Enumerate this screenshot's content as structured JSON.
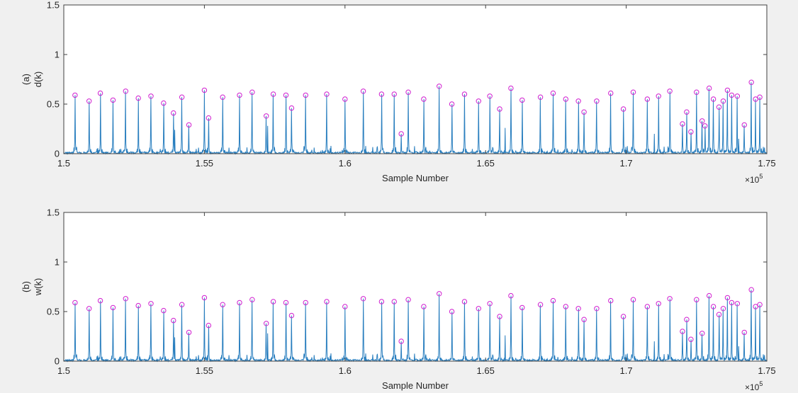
{
  "figure": {
    "background": "#f0f0f0",
    "axes_background": "#ffffff",
    "axis_color": "#404040",
    "signal_color": "#2a7fbf",
    "marker_color": "#d020d0"
  },
  "chart_data": [
    {
      "type": "line",
      "panel_label": "(a)",
      "ylabel": "d(k)",
      "xlabel": "Sample Number",
      "x_exponent_label": "×10",
      "x_exponent_power": "5",
      "xlim": [
        1.5,
        1.75
      ],
      "ylim": [
        0,
        1.5
      ],
      "x_ticks": [
        1.5,
        1.55,
        1.6,
        1.65,
        1.7,
        1.75
      ],
      "x_tick_labels": [
        "1.5",
        "1.55",
        "1.6",
        "1.65",
        "1.7",
        "1.75"
      ],
      "y_ticks": [
        0,
        0.5,
        1,
        1.5
      ],
      "y_tick_labels": [
        "0",
        "0.5",
        "1",
        "1.5"
      ],
      "grid": false,
      "series": [
        {
          "role": "signal",
          "style": "line"
        },
        {
          "role": "detected-peaks",
          "style": "circle-markers"
        }
      ],
      "peaks_x": [
        1.504,
        1.509,
        1.513,
        1.5175,
        1.522,
        1.5265,
        1.531,
        1.5355,
        1.539,
        1.542,
        1.5445,
        1.55,
        1.5515,
        1.5565,
        1.5625,
        1.567,
        1.572,
        1.5745,
        1.579,
        1.581,
        1.586,
        1.5935,
        1.6,
        1.6065,
        1.613,
        1.6175,
        1.62,
        1.6225,
        1.628,
        1.6335,
        1.638,
        1.6425,
        1.6475,
        1.6515,
        1.655,
        1.659,
        1.663,
        1.6695,
        1.674,
        1.6785,
        1.683,
        1.685,
        1.6895,
        1.6945,
        1.699,
        1.7025,
        1.7075,
        1.7115,
        1.7155,
        1.72,
        1.7215,
        1.723,
        1.725,
        1.727,
        1.728,
        1.7295,
        1.731,
        1.733,
        1.7345,
        1.736,
        1.7375,
        1.7395,
        1.742,
        1.7445,
        1.746,
        1.7475
      ],
      "peaks_y": [
        0.59,
        0.53,
        0.61,
        0.54,
        0.63,
        0.56,
        0.58,
        0.51,
        0.41,
        0.57,
        0.29,
        0.64,
        0.36,
        0.57,
        0.59,
        0.62,
        0.38,
        0.6,
        0.59,
        0.46,
        0.59,
        0.6,
        0.55,
        0.63,
        0.6,
        0.6,
        0.2,
        0.62,
        0.55,
        0.68,
        0.5,
        0.6,
        0.53,
        0.58,
        0.45,
        0.66,
        0.54,
        0.57,
        0.61,
        0.55,
        0.53,
        0.42,
        0.53,
        0.61,
        0.45,
        0.62,
        0.55,
        0.58,
        0.63,
        0.3,
        0.42,
        0.22,
        0.62,
        0.33,
        0.28,
        0.66,
        0.55,
        0.47,
        0.53,
        0.64,
        0.59,
        0.58,
        0.29,
        0.72,
        0.55,
        0.57
      ]
    },
    {
      "type": "line",
      "panel_label": "(b)",
      "ylabel": "w(k)",
      "xlabel": "Sample Number",
      "x_exponent_label": "×10",
      "x_exponent_power": "5",
      "xlim": [
        1.5,
        1.75
      ],
      "ylim": [
        0,
        1.5
      ],
      "x_ticks": [
        1.5,
        1.55,
        1.6,
        1.65,
        1.7,
        1.75
      ],
      "x_tick_labels": [
        "1.5",
        "1.55",
        "1.6",
        "1.65",
        "1.7",
        "1.75"
      ],
      "y_ticks": [
        0,
        0.5,
        1,
        1.5
      ],
      "y_tick_labels": [
        "0",
        "0.5",
        "1",
        "1.5"
      ],
      "grid": false,
      "series": [
        {
          "role": "signal",
          "style": "line"
        },
        {
          "role": "detected-peaks",
          "style": "circle-markers"
        }
      ],
      "peaks_x": [
        1.504,
        1.509,
        1.513,
        1.5175,
        1.522,
        1.5265,
        1.531,
        1.5355,
        1.539,
        1.542,
        1.5445,
        1.55,
        1.5515,
        1.5565,
        1.5625,
        1.567,
        1.572,
        1.5745,
        1.579,
        1.581,
        1.586,
        1.5935,
        1.6,
        1.6065,
        1.613,
        1.6175,
        1.62,
        1.6225,
        1.628,
        1.6335,
        1.638,
        1.6425,
        1.6475,
        1.6515,
        1.655,
        1.659,
        1.663,
        1.6695,
        1.674,
        1.6785,
        1.683,
        1.685,
        1.6895,
        1.6945,
        1.699,
        1.7025,
        1.7075,
        1.7115,
        1.7155,
        1.72,
        1.7215,
        1.723,
        1.725,
        1.727,
        1.7295,
        1.731,
        1.733,
        1.7345,
        1.736,
        1.7375,
        1.7395,
        1.742,
        1.7445,
        1.746,
        1.7475
      ],
      "peaks_y": [
        0.59,
        0.53,
        0.61,
        0.54,
        0.63,
        0.56,
        0.58,
        0.51,
        0.41,
        0.57,
        0.29,
        0.64,
        0.36,
        0.57,
        0.59,
        0.62,
        0.38,
        0.6,
        0.59,
        0.46,
        0.59,
        0.6,
        0.55,
        0.63,
        0.6,
        0.6,
        0.2,
        0.62,
        0.55,
        0.68,
        0.5,
        0.6,
        0.53,
        0.58,
        0.45,
        0.66,
        0.54,
        0.57,
        0.61,
        0.55,
        0.53,
        0.42,
        0.53,
        0.61,
        0.45,
        0.62,
        0.55,
        0.58,
        0.63,
        0.3,
        0.42,
        0.22,
        0.62,
        0.28,
        0.66,
        0.55,
        0.47,
        0.53,
        0.64,
        0.59,
        0.58,
        0.29,
        0.72,
        0.55,
        0.57
      ]
    }
  ]
}
